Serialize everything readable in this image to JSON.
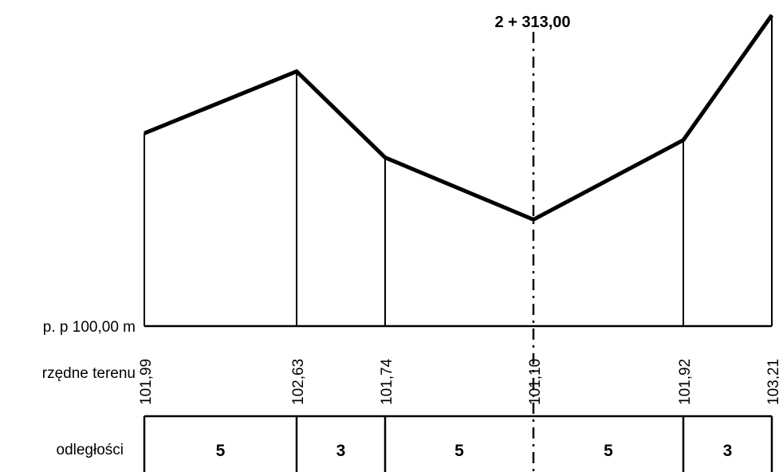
{
  "station_label": "2 + 313,00",
  "datum_label": "p. p 100,00 m",
  "row_labels": {
    "elevations": "rzędne terenu",
    "distances": "odległości"
  },
  "datum": 100.0,
  "points": [
    {
      "elevation": 101.99,
      "label": "101,99"
    },
    {
      "elevation": 102.63,
      "label": "102,63"
    },
    {
      "elevation": 101.74,
      "label": "101,74"
    },
    {
      "elevation": 101.1,
      "label": "101,10"
    },
    {
      "elevation": 101.92,
      "label": "101,92"
    },
    {
      "elevation": 103.21,
      "label": "103,21"
    }
  ],
  "distances": [
    "5",
    "3",
    "5",
    "5",
    "3"
  ],
  "axis_index": 3
}
